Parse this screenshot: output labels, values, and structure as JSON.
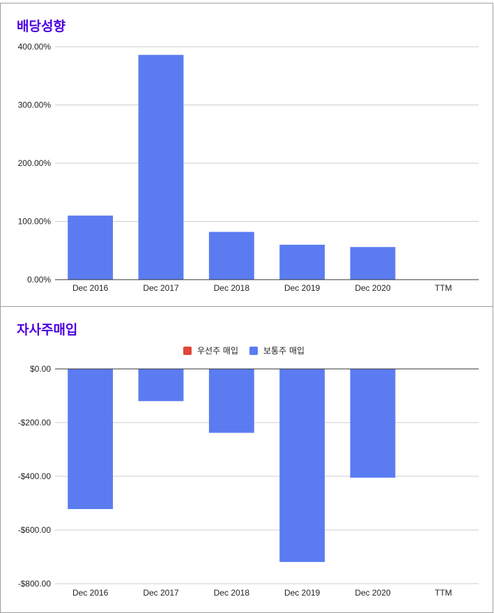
{
  "colors": {
    "title": "#4b00e0",
    "bar": "#5b7cf1",
    "preferred": "#e0463a",
    "grid": "#cccccc",
    "baseline": "#333333"
  },
  "chart_data": [
    {
      "type": "bar",
      "title": "배당성향",
      "categories": [
        "Dec 2016",
        "Dec 2017",
        "Dec 2018",
        "Dec 2019",
        "Dec 2020",
        "TTM"
      ],
      "values": [
        110,
        386,
        82,
        60,
        56,
        null
      ],
      "yticks": [
        "0.00%",
        "100.00%",
        "200.00%",
        "300.00%",
        "400.00%"
      ],
      "ylim": [
        0,
        400
      ],
      "legend": null,
      "grid": true
    },
    {
      "type": "bar",
      "title": "자사주매입",
      "categories": [
        "Dec 2016",
        "Dec 2017",
        "Dec 2018",
        "Dec 2019",
        "Dec 2020",
        "TTM"
      ],
      "series": [
        {
          "name": "우선주 매입",
          "values": [
            0,
            0,
            0,
            0,
            0,
            null
          ]
        },
        {
          "name": "보통주 매입",
          "values": [
            -522,
            -120,
            -238,
            -719,
            -405,
            null
          ]
        }
      ],
      "yticks": [
        "$0.00",
        "-$200.00",
        "-$400.00",
        "-$600.00",
        "-$800.00"
      ],
      "ylim": [
        -800,
        0
      ],
      "legend": "top-center",
      "grid": true
    }
  ]
}
